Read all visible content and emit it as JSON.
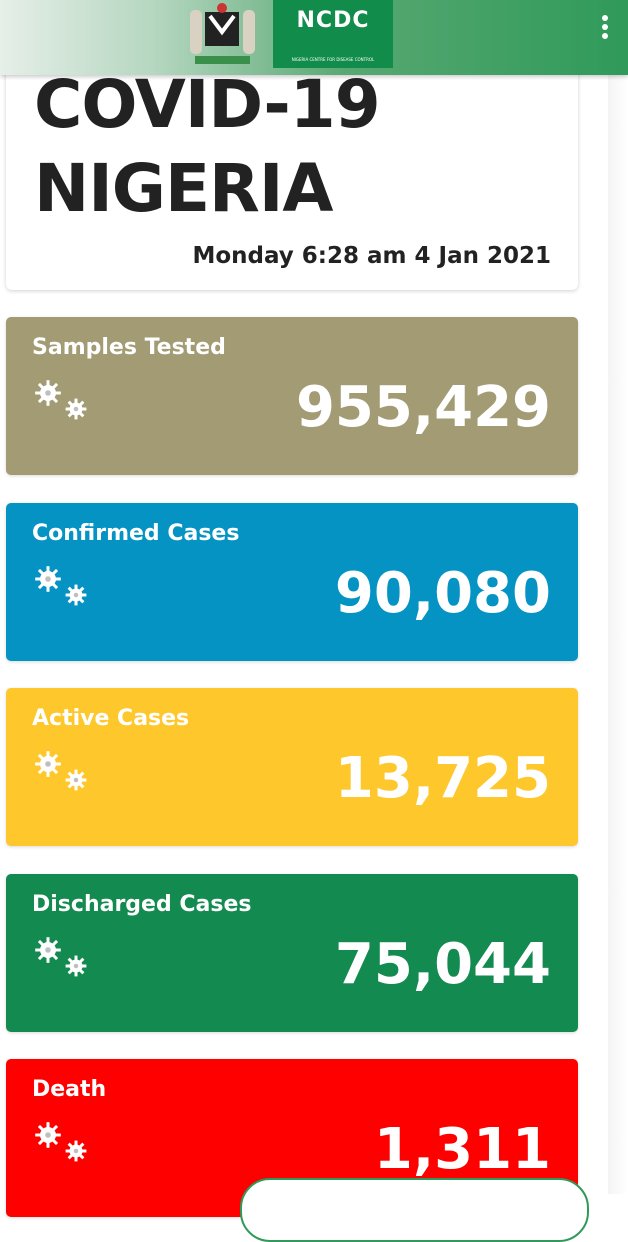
{
  "header": {
    "logo_text": "NCDC",
    "logo_subtext": "NIGERIA CENTRE FOR DISEASE CONTROL"
  },
  "title": {
    "line1": "COVID-19",
    "line2": "NIGERIA",
    "date": "Monday 6:28 am 4 Jan 2021"
  },
  "cards": [
    {
      "label": "Samples Tested",
      "value": "955,429",
      "color": "#a29b73"
    },
    {
      "label": "Confirmed Cases",
      "value": "90,080",
      "color": "#0593c4"
    },
    {
      "label": "Active Cases",
      "value": "13,725",
      "color": "#fec82d"
    },
    {
      "label": "Discharged Cases",
      "value": "75,044",
      "color": "#138a4f"
    },
    {
      "label": "Death",
      "value": "1,311",
      "color": "#fe0000"
    }
  ]
}
